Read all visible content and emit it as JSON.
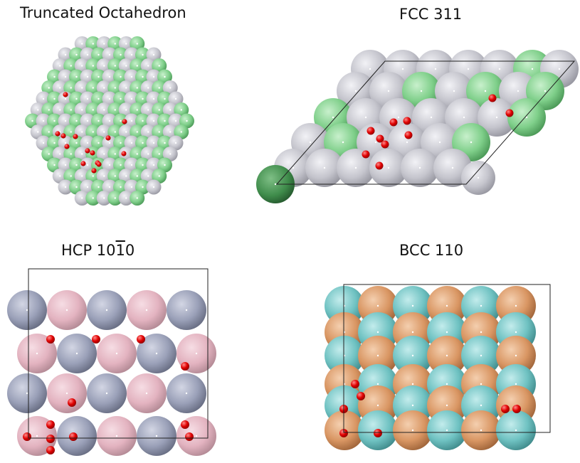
{
  "panels": [
    {
      "id": "to",
      "title": "Truncated Octahedron"
    },
    {
      "id": "fcc",
      "title": "FCC 311"
    },
    {
      "id": "hcp",
      "title_pre": "HCP 10",
      "title_bar": "1",
      "title_post": "0"
    },
    {
      "id": "bcc",
      "title": "BCC 110"
    }
  ],
  "colors": {
    "grey": "#c9c9d0",
    "green": "#7fcf8a",
    "pink": "#e6b6c2",
    "slate": "#9aa0b8",
    "teal": "#6fc2c2",
    "orange": "#d99663",
    "oxygen": "#d00000"
  }
}
